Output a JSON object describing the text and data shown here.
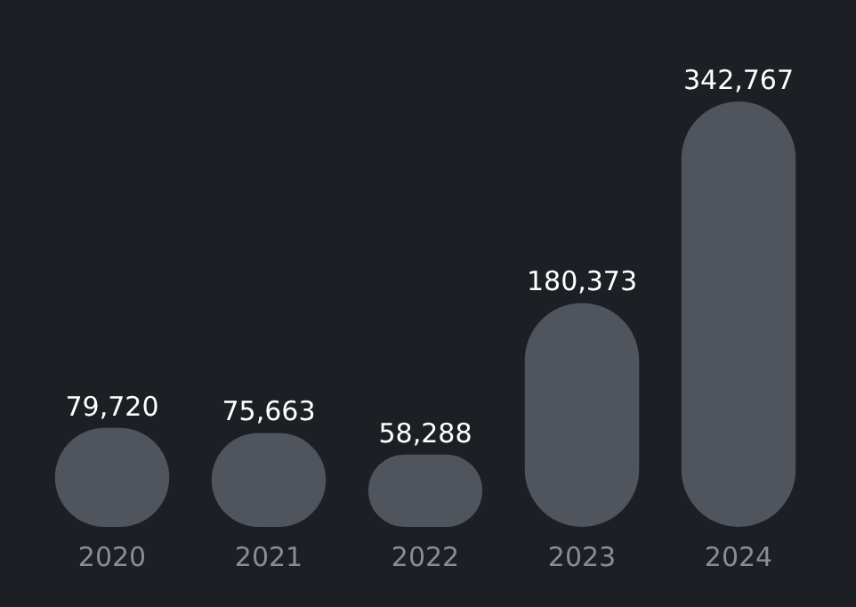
{
  "chart_data": {
    "type": "bar",
    "categories": [
      "2020",
      "2021",
      "2022",
      "2023",
      "2024"
    ],
    "values": [
      79720,
      75663,
      58288,
      180373,
      342767
    ],
    "value_labels": [
      "79,720",
      "75,663",
      "58,288",
      "180,373",
      "342,767"
    ],
    "color": "#50545c"
  }
}
